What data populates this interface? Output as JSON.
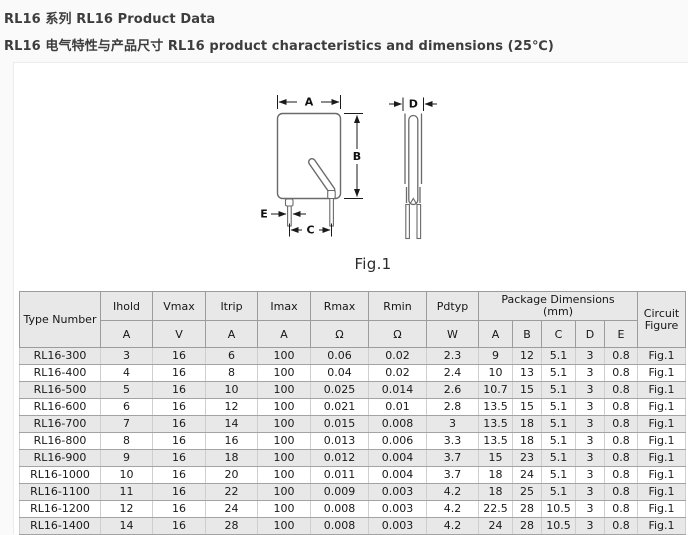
{
  "page": {
    "title_line1": "RL16 系列 RL16 Product Data",
    "title_line2": "RL16 电气特性与产品尺寸 RL16 product characteristics and dimensions (25℃)"
  },
  "figure": {
    "caption": "Fig.1",
    "labels": {
      "A": "A",
      "B": "B",
      "C": "C",
      "D": "D",
      "E": "E"
    }
  },
  "table": {
    "col_type_number": "Type Number",
    "params": [
      {
        "name": "Ihold",
        "unit": "A"
      },
      {
        "name": "Vmax",
        "unit": "V"
      },
      {
        "name": "Itrip",
        "unit": "A"
      },
      {
        "name": "Imax",
        "unit": "A"
      },
      {
        "name": "Rmax",
        "unit": "Ω"
      },
      {
        "name": "Rmin",
        "unit": "Ω"
      },
      {
        "name": "Pdtyp",
        "unit": "W"
      }
    ],
    "package_dimensions": {
      "title": "Package Dimensions",
      "subtitle": "(mm)",
      "columns": [
        "A",
        "B",
        "C",
        "D",
        "E"
      ]
    },
    "circuit_figure": {
      "line1": "Circuit",
      "line2": "Figure"
    },
    "rows": [
      [
        "RL16-300",
        "3",
        "16",
        "6",
        "100",
        "0.06",
        "0.02",
        "2.3",
        "9",
        "12",
        "5.1",
        "3",
        "0.8",
        "Fig.1"
      ],
      [
        "RL16-400",
        "4",
        "16",
        "8",
        "100",
        "0.04",
        "0.02",
        "2.4",
        "10",
        "13",
        "5.1",
        "3",
        "0.8",
        "Fig.1"
      ],
      [
        "RL16-500",
        "5",
        "16",
        "10",
        "100",
        "0.025",
        "0.014",
        "2.6",
        "10.7",
        "15",
        "5.1",
        "3",
        "0.8",
        "Fig.1"
      ],
      [
        "RL16-600",
        "6",
        "16",
        "12",
        "100",
        "0.021",
        "0.01",
        "2.8",
        "13.5",
        "15",
        "5.1",
        "3",
        "0.8",
        "Fig.1"
      ],
      [
        "RL16-700",
        "7",
        "16",
        "14",
        "100",
        "0.015",
        "0.008",
        "3",
        "13.5",
        "18",
        "5.1",
        "3",
        "0.8",
        "Fig.1"
      ],
      [
        "RL16-800",
        "8",
        "16",
        "16",
        "100",
        "0.013",
        "0.006",
        "3.3",
        "13.5",
        "18",
        "5.1",
        "3",
        "0.8",
        "Fig.1"
      ],
      [
        "RL16-900",
        "9",
        "16",
        "18",
        "100",
        "0.012",
        "0.004",
        "3.7",
        "15",
        "23",
        "5.1",
        "3",
        "0.8",
        "Fig.1"
      ],
      [
        "RL16-1000",
        "10",
        "16",
        "20",
        "100",
        "0.011",
        "0.004",
        "3.7",
        "18",
        "24",
        "5.1",
        "3",
        "0.8",
        "Fig.1"
      ],
      [
        "RL16-1100",
        "11",
        "16",
        "22",
        "100",
        "0.009",
        "0.003",
        "4.2",
        "18",
        "25",
        "5.1",
        "3",
        "0.8",
        "Fig.1"
      ],
      [
        "RL16-1200",
        "12",
        "16",
        "24",
        "100",
        "0.008",
        "0.003",
        "4.2",
        "22.5",
        "28",
        "10.5",
        "3",
        "0.8",
        "Fig.1"
      ],
      [
        "RL16-1400",
        "14",
        "16",
        "28",
        "100",
        "0.008",
        "0.003",
        "4.2",
        "24",
        "28",
        "10.5",
        "3",
        "0.8",
        "Fig.1"
      ]
    ]
  },
  "colors": {
    "page_bg": "#fafafa",
    "panel_bg": "#ffffff",
    "header_bg": "#e8e8e8",
    "stripe_bg": "#e8e8e8",
    "border_outer": "#898989",
    "border_inner": "#9c9c9c",
    "text": "#1a1a1a",
    "title_text": "#3d3d3d"
  }
}
